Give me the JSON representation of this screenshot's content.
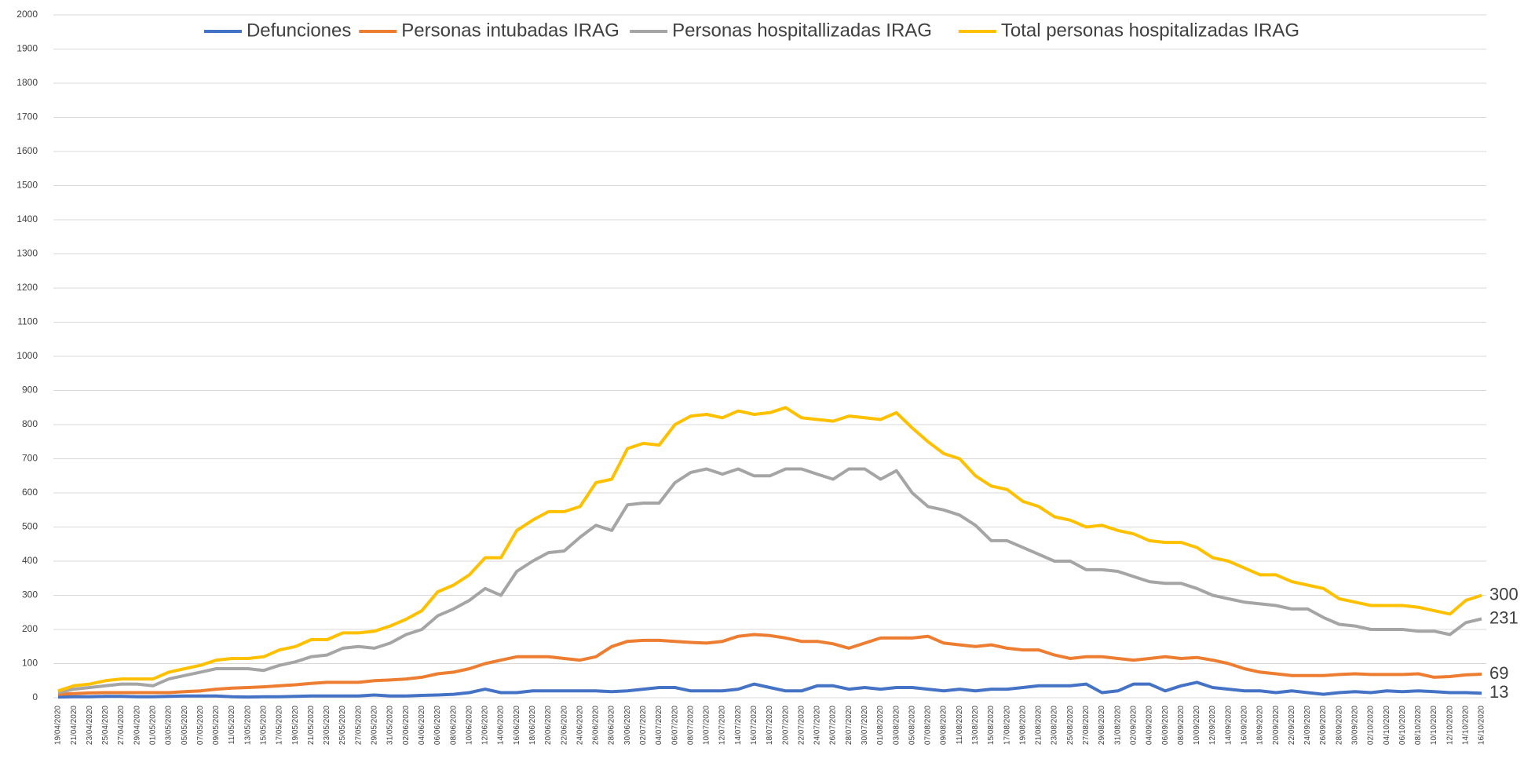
{
  "chart_data": {
    "type": "line",
    "categories": [
      "19/04/2020",
      "21/04/2020",
      "23/04/2020",
      "25/04/2020",
      "27/04/2020",
      "29/04/2020",
      "01/05/2020",
      "03/05/2020",
      "05/05/2020",
      "07/05/2020",
      "09/05/2020",
      "11/05/2020",
      "13/05/2020",
      "15/05/2020",
      "17/05/2020",
      "19/05/2020",
      "21/05/2020",
      "23/05/2020",
      "25/05/2020",
      "27/05/2020",
      "29/05/2020",
      "31/05/2020",
      "02/06/2020",
      "04/06/2020",
      "06/06/2020",
      "08/06/2020",
      "10/06/2020",
      "12/06/2020",
      "14/06/2020",
      "16/06/2020",
      "18/06/2020",
      "20/06/2020",
      "22/06/2020",
      "24/06/2020",
      "26/06/2020",
      "28/06/2020",
      "30/06/2020",
      "02/07/2020",
      "04/07/2020",
      "06/07/2020",
      "08/07/2020",
      "10/07/2020",
      "12/07/2020",
      "14/07/2020",
      "16/07/2020",
      "18/07/2020",
      "20/07/2020",
      "22/07/2020",
      "24/07/2020",
      "26/07/2020",
      "28/07/2020",
      "30/07/2020",
      "01/08/2020",
      "03/08/2020",
      "05/08/2020",
      "07/08/2020",
      "09/08/2020",
      "11/08/2020",
      "13/08/2020",
      "15/08/2020",
      "17/08/2020",
      "19/08/2020",
      "21/08/2020",
      "23/08/2020",
      "25/08/2020",
      "27/08/2020",
      "29/08/2020",
      "31/08/2020",
      "02/09/2020",
      "04/09/2020",
      "06/09/2020",
      "08/09/2020",
      "10/09/2020",
      "12/09/2020",
      "14/09/2020",
      "16/09/2020",
      "18/09/2020",
      "20/09/2020",
      "22/09/2020",
      "24/09/2020",
      "26/09/2020",
      "28/09/2020",
      "30/09/2020",
      "02/10/2020",
      "04/10/2020",
      "06/10/2020",
      "08/10/2020",
      "10/10/2020",
      "12/10/2020",
      "14/10/2020",
      "16/10/2020"
    ],
    "series": [
      {
        "name": "Defunciones",
        "color": "#4472c4",
        "values": [
          2,
          3,
          3,
          4,
          4,
          3,
          3,
          4,
          5,
          5,
          5,
          3,
          2,
          3,
          3,
          4,
          5,
          5,
          5,
          5,
          8,
          5,
          5,
          7,
          8,
          10,
          15,
          25,
          15,
          15,
          20,
          20,
          20,
          20,
          20,
          18,
          20,
          25,
          30,
          30,
          20,
          20,
          20,
          25,
          40,
          30,
          20,
          20,
          35,
          35,
          25,
          30,
          25,
          30,
          30,
          25,
          20,
          25,
          20,
          25,
          25,
          30,
          35,
          35,
          35,
          40,
          15,
          20,
          40,
          40,
          20,
          35,
          45,
          30,
          25,
          20,
          20,
          15,
          20,
          15,
          10,
          15,
          18,
          15,
          20,
          18,
          20,
          18,
          15,
          15,
          13
        ]
      },
      {
        "name": "Personas intubadas IRAG",
        "color": "#ed7d31",
        "values": [
          10,
          12,
          14,
          15,
          15,
          15,
          15,
          15,
          18,
          20,
          25,
          28,
          30,
          32,
          35,
          38,
          42,
          45,
          45,
          45,
          50,
          52,
          55,
          60,
          70,
          75,
          85,
          100,
          110,
          120,
          120,
          120,
          115,
          110,
          120,
          150,
          165,
          168,
          168,
          165,
          162,
          160,
          165,
          180,
          185,
          182,
          175,
          165,
          165,
          158,
          145,
          160,
          175,
          175,
          175,
          180,
          160,
          155,
          150,
          155,
          145,
          140,
          140,
          125,
          115,
          120,
          120,
          115,
          110,
          115,
          120,
          115,
          118,
          110,
          100,
          85,
          75,
          70,
          65,
          65,
          65,
          68,
          70,
          68,
          68,
          68,
          70,
          60,
          62,
          67,
          69
        ]
      },
      {
        "name": "Personas hospitallizadas IRAG",
        "color": "#a5a5a5",
        "values": [
          15,
          25,
          30,
          35,
          40,
          40,
          35,
          55,
          65,
          75,
          85,
          85,
          85,
          80,
          95,
          105,
          120,
          125,
          145,
          150,
          145,
          160,
          185,
          200,
          240,
          260,
          285,
          320,
          300,
          370,
          400,
          425,
          430,
          470,
          505,
          490,
          565,
          570,
          570,
          630,
          660,
          670,
          655,
          670,
          650,
          650,
          670,
          670,
          655,
          640,
          670,
          670,
          640,
          665,
          600,
          560,
          550,
          535,
          505,
          460,
          460,
          440,
          420,
          400,
          400,
          375,
          375,
          370,
          355,
          340,
          335,
          335,
          320,
          300,
          290,
          280,
          275,
          270,
          260,
          260,
          235,
          215,
          210,
          200,
          200,
          200,
          195,
          195,
          185,
          220,
          231
        ]
      },
      {
        "name": "Total personas hospitalizadas IRAG",
        "color": "#ffc000",
        "values": [
          20,
          35,
          40,
          50,
          55,
          55,
          55,
          75,
          85,
          95,
          110,
          115,
          115,
          120,
          140,
          150,
          170,
          170,
          190,
          190,
          195,
          210,
          230,
          255,
          310,
          330,
          360,
          410,
          410,
          490,
          520,
          545,
          545,
          560,
          630,
          640,
          730,
          745,
          740,
          800,
          825,
          830,
          820,
          840,
          830,
          835,
          850,
          820,
          815,
          810,
          825,
          820,
          815,
          835,
          790,
          750,
          715,
          700,
          650,
          620,
          610,
          575,
          560,
          530,
          520,
          500,
          505,
          490,
          480,
          460,
          455,
          455,
          440,
          410,
          400,
          380,
          360,
          360,
          340,
          330,
          320,
          290,
          280,
          270,
          270,
          270,
          265,
          255,
          245,
          285,
          300
        ]
      }
    ],
    "ylim": [
      0,
      2000
    ],
    "yticks": [
      0,
      100,
      200,
      300,
      400,
      500,
      600,
      700,
      800,
      900,
      1000,
      1100,
      1200,
      1300,
      1400,
      1500,
      1600,
      1700,
      1800,
      1900,
      2000
    ],
    "grid": true,
    "legend": "top"
  }
}
